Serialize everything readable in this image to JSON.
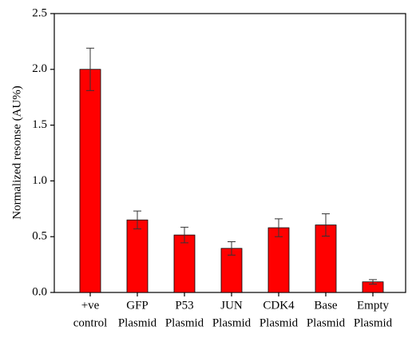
{
  "chart_data": {
    "type": "bar",
    "y_label": "Normalized resonse (AU%)",
    "categories": [
      [
        "+ve",
        "control"
      ],
      [
        "GFP",
        "Plasmid"
      ],
      [
        "P53",
        "Plasmid"
      ],
      [
        "JUN",
        "Plasmid"
      ],
      [
        "CDK4",
        "Plasmid"
      ],
      [
        "Base",
        "Plasmid"
      ],
      [
        "Empty",
        "Plasmid"
      ]
    ],
    "values": [
      2.0,
      0.65,
      0.515,
      0.395,
      0.58,
      0.605,
      0.095
    ],
    "errors": [
      0.19,
      0.08,
      0.07,
      0.06,
      0.08,
      0.1,
      0.02
    ],
    "color": "#ff0000",
    "ylim": [
      0,
      2.5
    ],
    "yticks": [
      {
        "value": 0,
        "label": "0.0"
      },
      {
        "value": 0.5,
        "label": "0.5"
      },
      {
        "value": 1,
        "label": "1.0"
      },
      {
        "value": 1.5,
        "label": "1.5"
      },
      {
        "value": 2,
        "label": "2.0"
      },
      {
        "value": 2.5,
        "label": "2.5"
      }
    ]
  }
}
